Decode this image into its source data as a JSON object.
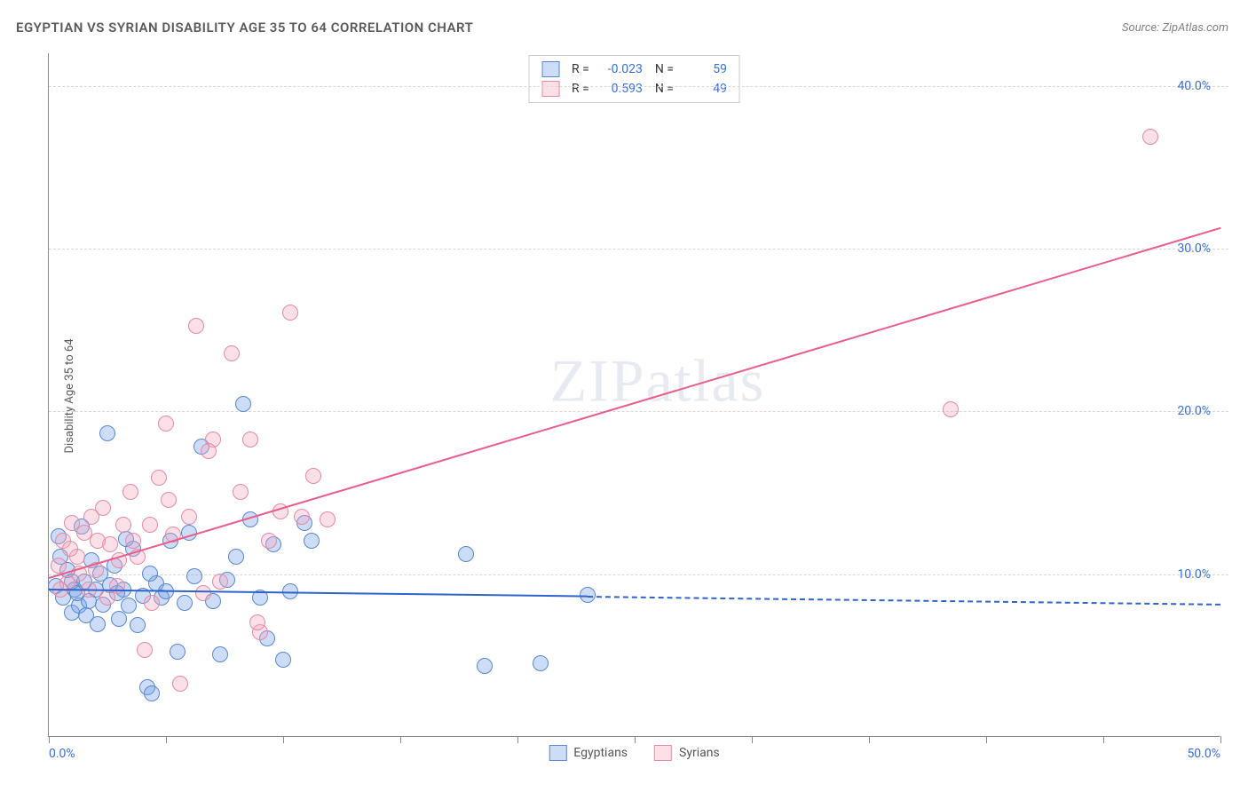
{
  "title": "EGYPTIAN VS SYRIAN DISABILITY AGE 35 TO 64 CORRELATION CHART",
  "source_prefix": "Source: ",
  "source_name": "ZipAtlas.com",
  "ylabel": "Disability Age 35 to 64",
  "watermark": "ZIPatlas",
  "chart": {
    "type": "scatter",
    "xlim": [
      0,
      50
    ],
    "ylim": [
      0,
      42
    ],
    "yticks": [
      10,
      20,
      30,
      40
    ],
    "ytick_labels": [
      "10.0%",
      "20.0%",
      "30.0%",
      "40.0%"
    ],
    "xticks": [
      0,
      5,
      10,
      15,
      20,
      25,
      30,
      35,
      40,
      45,
      50
    ],
    "xtick_labels_shown": {
      "0": "0.0%",
      "50": "50.0%"
    },
    "background_color": "#ffffff",
    "grid_color": "#d8d8d8",
    "axis_color": "#888888",
    "tick_label_color": "#3b6fd8",
    "marker_radius": 9,
    "marker_border_width": 1,
    "marker_fill_opacity": 0.35,
    "series": [
      {
        "name": "Egyptians",
        "color": "#6f9ee8",
        "border_color": "#5a87cf",
        "r": -0.023,
        "n": 59,
        "trend": {
          "x0": 0,
          "y0": 9.1,
          "x1": 50,
          "y1": 8.2,
          "solid_until_x": 23,
          "line_color": "#2f64c9",
          "width": 2
        },
        "points": [
          [
            0.3,
            9.2
          ],
          [
            0.5,
            11.0
          ],
          [
            0.6,
            8.5
          ],
          [
            0.8,
            10.2
          ],
          [
            1.0,
            7.6
          ],
          [
            1.1,
            9.0
          ],
          [
            1.3,
            8.0
          ],
          [
            1.4,
            12.9
          ],
          [
            1.5,
            9.5
          ],
          [
            1.7,
            8.3
          ],
          [
            1.8,
            10.8
          ],
          [
            2.0,
            9.0
          ],
          [
            2.1,
            6.9
          ],
          [
            2.3,
            8.1
          ],
          [
            2.5,
            18.6
          ],
          [
            2.6,
            9.3
          ],
          [
            2.8,
            10.5
          ],
          [
            3.0,
            7.2
          ],
          [
            3.2,
            9.0
          ],
          [
            3.4,
            8.0
          ],
          [
            3.6,
            11.5
          ],
          [
            3.8,
            6.8
          ],
          [
            4.0,
            8.6
          ],
          [
            4.2,
            3.0
          ],
          [
            4.4,
            2.6
          ],
          [
            4.6,
            9.4
          ],
          [
            4.8,
            8.5
          ],
          [
            5.2,
            12.0
          ],
          [
            5.5,
            5.2
          ],
          [
            5.8,
            8.2
          ],
          [
            6.0,
            12.5
          ],
          [
            6.2,
            9.8
          ],
          [
            6.5,
            17.8
          ],
          [
            7.0,
            8.3
          ],
          [
            7.3,
            5.0
          ],
          [
            7.6,
            9.6
          ],
          [
            8.0,
            11.0
          ],
          [
            8.3,
            20.4
          ],
          [
            8.6,
            13.3
          ],
          [
            9.0,
            8.5
          ],
          [
            9.3,
            6.0
          ],
          [
            9.6,
            11.8
          ],
          [
            10.0,
            4.7
          ],
          [
            10.3,
            8.9
          ],
          [
            10.9,
            13.1
          ],
          [
            11.2,
            12.0
          ],
          [
            17.8,
            11.2
          ],
          [
            18.6,
            4.3
          ],
          [
            21.0,
            4.5
          ],
          [
            23.0,
            8.7
          ],
          [
            1.0,
            9.5
          ],
          [
            1.2,
            8.8
          ],
          [
            1.6,
            7.4
          ],
          [
            2.2,
            10.0
          ],
          [
            2.9,
            8.8
          ],
          [
            3.3,
            12.1
          ],
          [
            4.3,
            10.0
          ],
          [
            5.0,
            8.9
          ],
          [
            0.4,
            12.3
          ]
        ]
      },
      {
        "name": "Syrians",
        "color": "#f3a6bd",
        "border_color": "#e58aa5",
        "r": 0.593,
        "n": 49,
        "trend": {
          "x0": 0,
          "y0": 9.8,
          "x1": 50,
          "y1": 31.3,
          "solid_until_x": 50,
          "line_color": "#e85d8a",
          "width": 2
        },
        "points": [
          [
            0.4,
            10.5
          ],
          [
            0.6,
            12.0
          ],
          [
            0.8,
            9.4
          ],
          [
            1.0,
            13.1
          ],
          [
            1.2,
            11.0
          ],
          [
            1.5,
            12.5
          ],
          [
            1.8,
            13.5
          ],
          [
            2.0,
            10.2
          ],
          [
            2.3,
            14.0
          ],
          [
            2.6,
            11.8
          ],
          [
            2.9,
            9.2
          ],
          [
            3.2,
            13.0
          ],
          [
            3.5,
            15.0
          ],
          [
            3.8,
            11.0
          ],
          [
            4.1,
            5.3
          ],
          [
            4.4,
            8.2
          ],
          [
            4.7,
            15.9
          ],
          [
            5.0,
            19.2
          ],
          [
            5.3,
            12.4
          ],
          [
            5.6,
            3.2
          ],
          [
            6.0,
            13.5
          ],
          [
            6.3,
            25.2
          ],
          [
            6.6,
            8.8
          ],
          [
            7.0,
            18.2
          ],
          [
            7.3,
            9.5
          ],
          [
            7.8,
            23.5
          ],
          [
            8.2,
            15.0
          ],
          [
            8.6,
            18.2
          ],
          [
            9.0,
            6.4
          ],
          [
            9.4,
            12.0
          ],
          [
            9.9,
            13.8
          ],
          [
            10.3,
            26.0
          ],
          [
            10.8,
            13.5
          ],
          [
            11.3,
            16.0
          ],
          [
            11.9,
            13.3
          ],
          [
            38.5,
            20.1
          ],
          [
            47.0,
            36.8
          ],
          [
            0.5,
            9.0
          ],
          [
            0.9,
            11.5
          ],
          [
            1.3,
            10.0
          ],
          [
            1.7,
            9.0
          ],
          [
            2.1,
            12.0
          ],
          [
            2.5,
            8.5
          ],
          [
            3.0,
            10.8
          ],
          [
            3.6,
            12.0
          ],
          [
            4.3,
            13.0
          ],
          [
            5.1,
            14.5
          ],
          [
            6.8,
            17.5
          ],
          [
            8.9,
            7.0
          ]
        ]
      }
    ]
  },
  "stats_box": {
    "r_label": "R =",
    "n_label": "N ="
  },
  "legend": {
    "items": [
      "Egyptians",
      "Syrians"
    ]
  }
}
